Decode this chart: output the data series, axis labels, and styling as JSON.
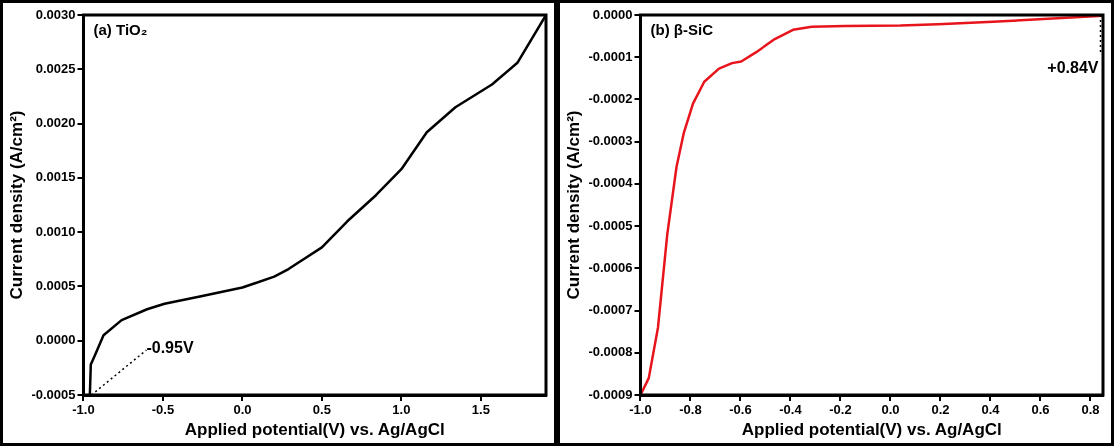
{
  "chart_data": [
    {
      "type": "line",
      "title": "(a) TiO₂",
      "xlabel": "Applied potential(V) vs. Ag/AgCl",
      "ylabel": "Current density (A/cm²)",
      "series": [
        {
          "color": "#000000",
          "x": [
            -0.96,
            -0.954,
            -0.93,
            -0.874,
            -0.76,
            -0.6,
            -0.49,
            -0.26,
            0,
            0.2,
            0.29,
            0.5,
            0.66,
            0.84,
            1.0,
            1.16,
            1.34,
            1.57,
            1.73,
            1.91
          ],
          "values": [
            -0.0005,
            -0.00022,
            -0.00014,
            5e-05,
            0.00019,
            0.00029,
            0.00034,
            0.00041,
            0.00049,
            0.00059,
            0.00066,
            0.00086,
            0.0011,
            0.00134,
            0.00158,
            0.00192,
            0.00215,
            0.00236,
            0.00256,
            0.003
          ]
        }
      ],
      "xlim": [
        -1.0,
        1.91
      ],
      "xticks": [
        {
          "value": -1,
          "label": "-1.0"
        },
        -0.5,
        {
          "value": 0,
          "label": "0.0"
        },
        0.5,
        {
          "value": 1,
          "label": "1.0"
        },
        1.5
      ],
      "ylim": [
        -0.0005,
        0.003
      ],
      "yticks": [
        {
          "value": -0.0005,
          "label": "-0.0005"
        },
        {
          "value": 0,
          "label": "0.0000"
        },
        {
          "value": 0.0005,
          "label": "0.0005"
        },
        {
          "value": 0.001,
          "label": "0.0010"
        },
        {
          "value": 0.0015,
          "label": "0.0015"
        },
        {
          "value": 0.002,
          "label": "0.0020"
        },
        {
          "value": 0.0025,
          "label": "0.0025"
        },
        {
          "value": 0.003,
          "label": "0.0030"
        }
      ],
      "annotations": [
        {
          "text": "-0.95V",
          "x": -0.95,
          "y": -0.0005
        }
      ],
      "grid": false,
      "legend": false,
      "marker": "none",
      "line_style": "solid"
    },
    {
      "type": "line",
      "title": "(b) β-SiC",
      "xlabel": "Applied potential(V) vs. Ag/AgCl",
      "ylabel": "Current density (A/cm²)",
      "series": [
        {
          "color": "#e8141c",
          "x": [
            -1.0,
            -0.967,
            -0.93,
            -0.893,
            -0.856,
            -0.827,
            -0.79,
            -0.745,
            -0.686,
            -0.634,
            -0.597,
            -0.537,
            -0.463,
            -0.39,
            -0.315,
            -0.18,
            0.04,
            0.19,
            0.41,
            0.63,
            0.85
          ],
          "values": [
            -0.0009,
            -0.00086,
            -0.00074,
            -0.00052,
            -0.00036,
            -0.00028,
            -0.00021,
            -0.000158,
            -0.000127,
            -0.000114,
            -0.00011,
            -8.8e-05,
            -5.7e-05,
            -3.5e-05,
            -2.8e-05,
            -2.6e-05,
            -2.5e-05,
            -2.2e-05,
            -1.6e-05,
            -9e-06,
            -2e-06
          ]
        }
      ],
      "xlim": [
        -1.0,
        0.85
      ],
      "xticks": [
        {
          "value": -1,
          "label": "-1.0"
        },
        -0.8,
        -0.6,
        -0.4,
        -0.2,
        {
          "value": 0,
          "label": "0.0"
        },
        0.2,
        0.4,
        0.6,
        0.8
      ],
      "ylim": [
        -0.0009,
        0
      ],
      "yticks": [
        {
          "value": -0.0009,
          "label": "-0.0009"
        },
        {
          "value": -0.0008,
          "label": "-0.0008"
        },
        {
          "value": -0.0007,
          "label": "-0.0007"
        },
        {
          "value": -0.0006,
          "label": "-0.0006"
        },
        {
          "value": -0.0005,
          "label": "-0.0005"
        },
        {
          "value": -0.0004,
          "label": "-0.0004"
        },
        {
          "value": -0.0003,
          "label": "-0.0003"
        },
        {
          "value": -0.0002,
          "label": "-0.0002"
        },
        {
          "value": -0.0001,
          "label": "-0.0001"
        },
        {
          "value": 0,
          "label": "0.0000"
        }
      ],
      "annotations": [
        {
          "text": "+0.84V",
          "x": 0.84,
          "y": 0
        }
      ],
      "grid": false,
      "legend": false,
      "marker": "none",
      "line_style": "solid"
    }
  ]
}
